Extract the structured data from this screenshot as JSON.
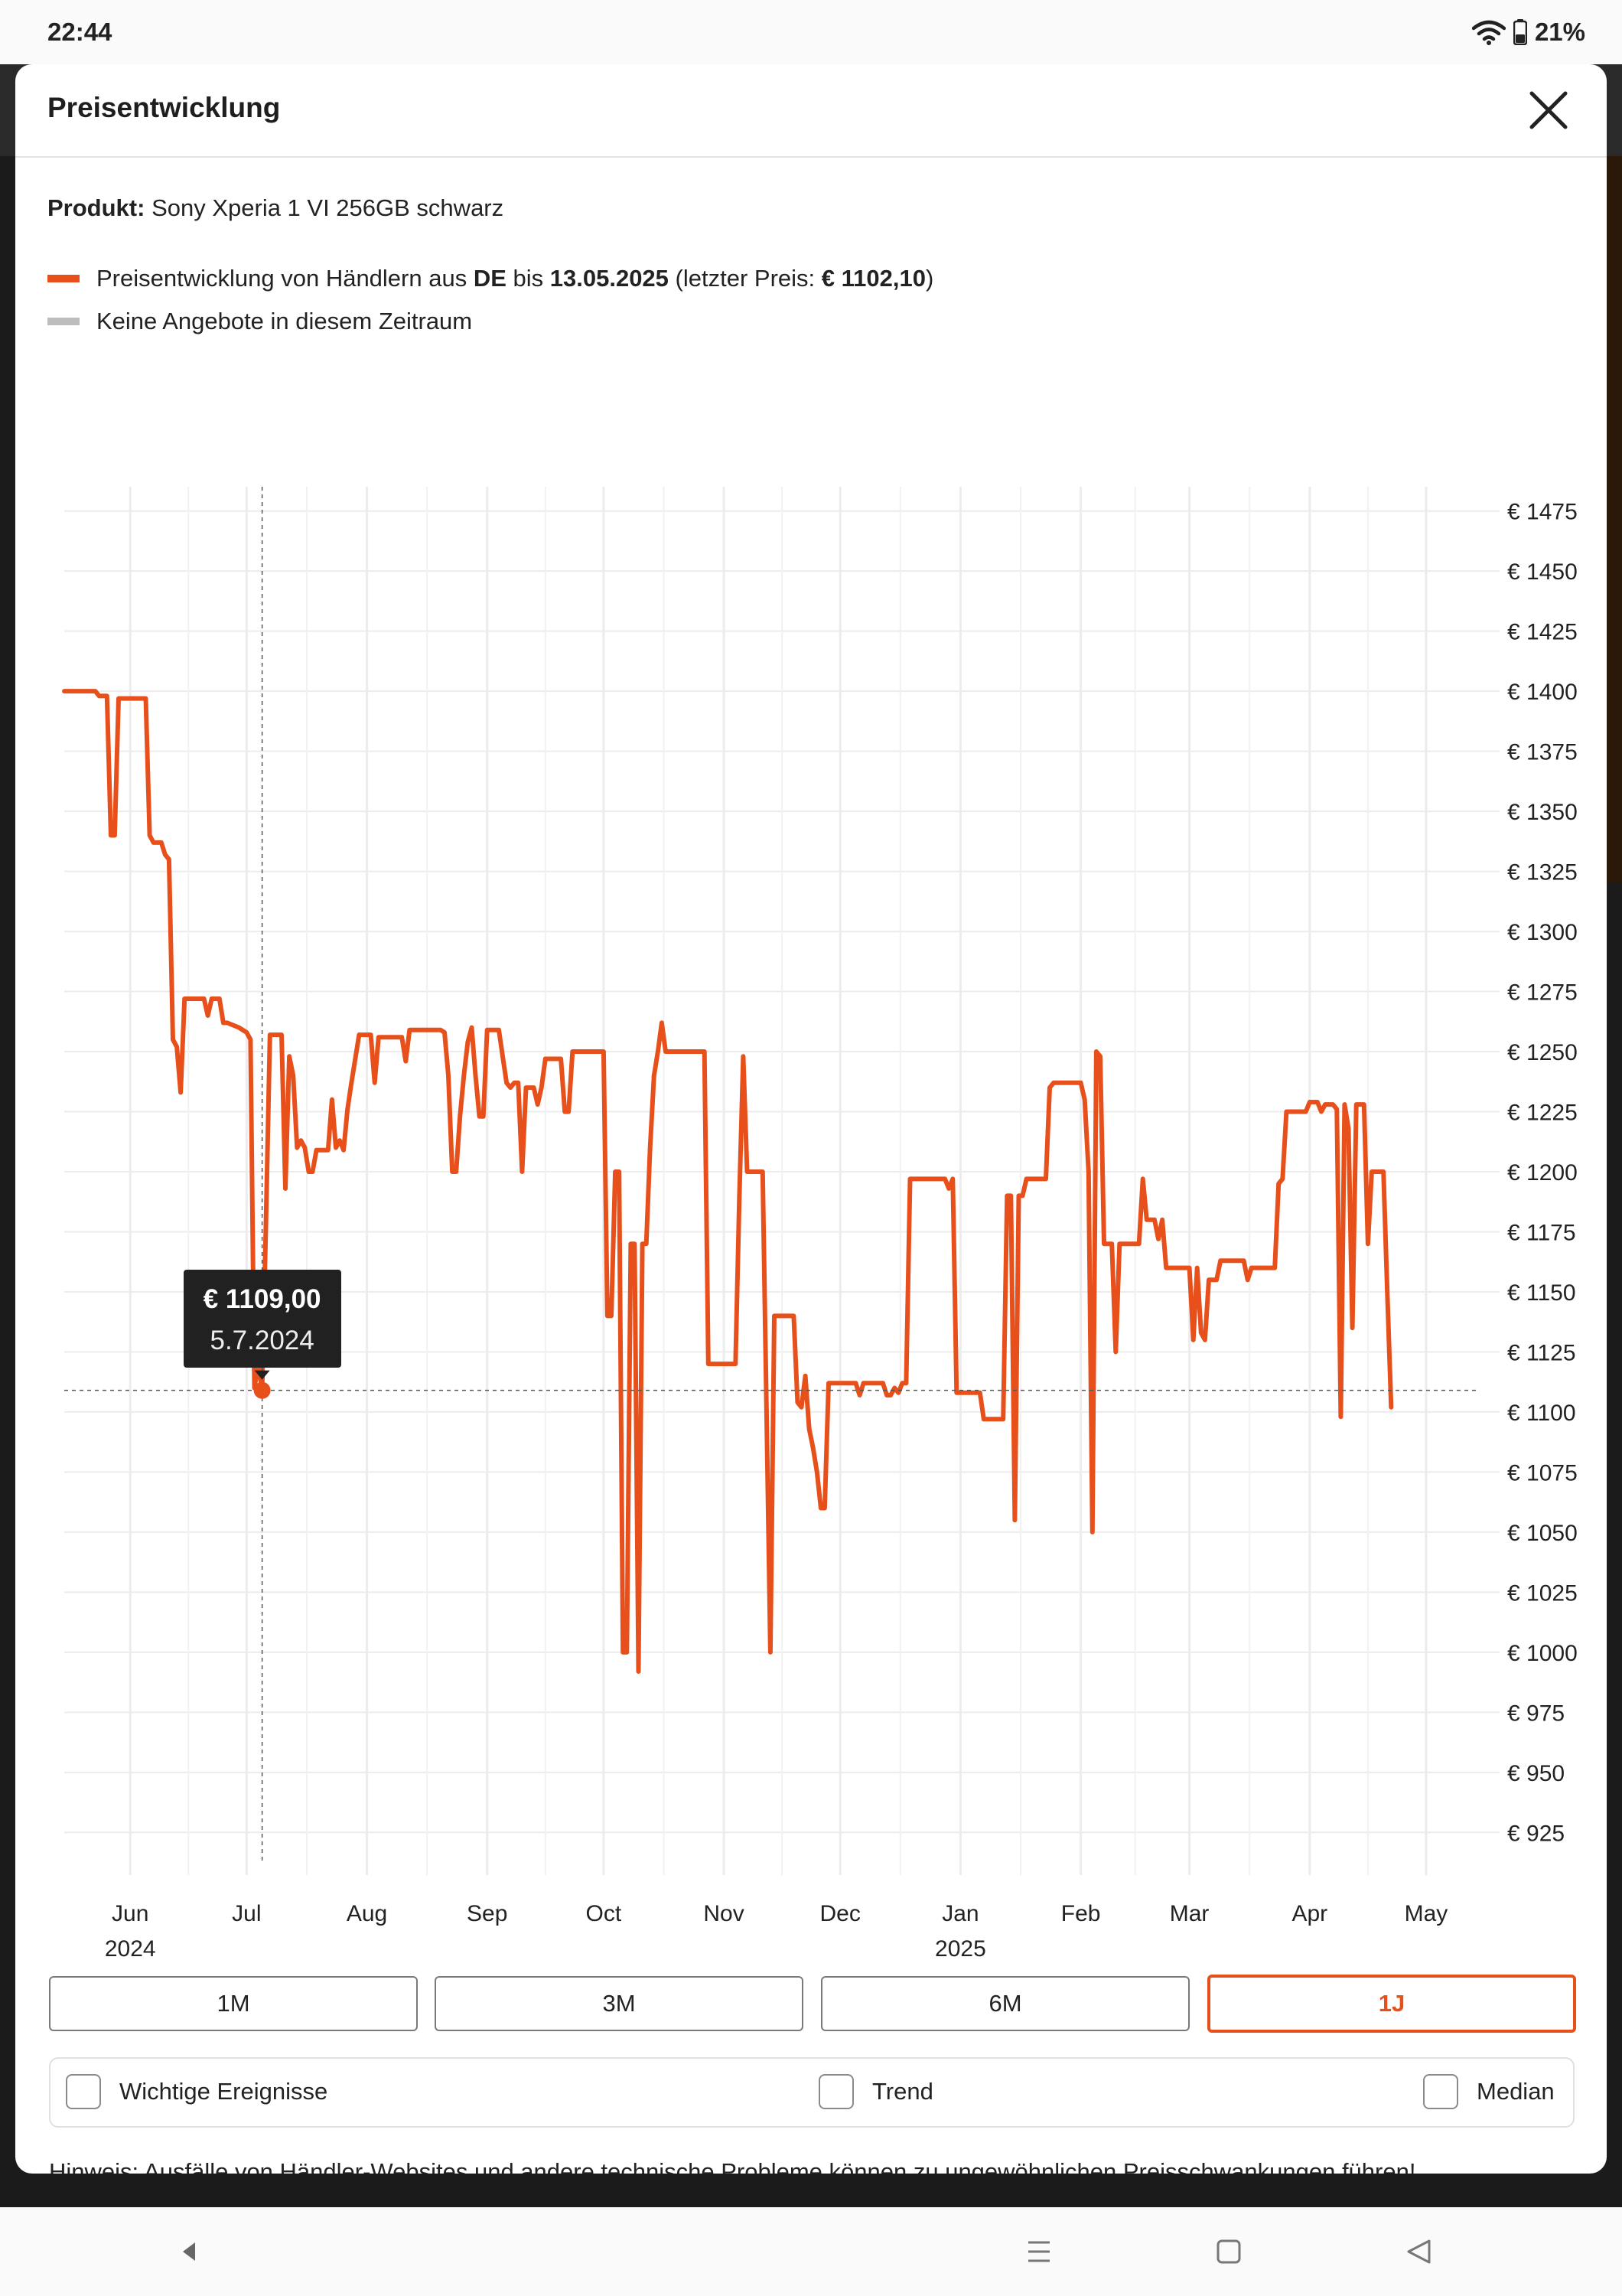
{
  "status_bar": {
    "time": "22:44",
    "battery": "21%",
    "icons": [
      "wifi-icon",
      "battery-icon"
    ]
  },
  "modal": {
    "title": "Preisentwicklung",
    "product_label": "Produkt:",
    "product_name": "Sony Xperia 1 VI 256GB schwarz",
    "legend": {
      "line1_prefix": "Preisentwicklung von Händlern aus ",
      "line1_country": "DE",
      "line1_until": " bis ",
      "line1_date": "13.05.2025",
      "line1_last_open": " (letzter Preis: ",
      "line1_last_price": "€ 1102,10",
      "line1_close": ")",
      "line2": "Keine Angebote in diesem Zeitraum",
      "line1_color": "#e8501b",
      "line2_color": "#bdbdbd"
    },
    "tooltip": {
      "price": "€ 1109,00",
      "date": "5.7.2024"
    },
    "range_buttons": [
      {
        "label": "1M",
        "active": false
      },
      {
        "label": "3M",
        "active": false
      },
      {
        "label": "6M",
        "active": false
      },
      {
        "label": "1J",
        "active": true
      }
    ],
    "options": {
      "events": "Wichtige Ereignisse",
      "trend": "Trend",
      "median": "Median"
    },
    "hint": "Hinweis: Ausfälle von Händler-Websites und andere technische Probleme können zu ungewöhnlichen Preisschwankungen führen!"
  },
  "colors": {
    "accent": "#e8501b",
    "grid": "#ececec",
    "tooltip_bg": "#212121"
  },
  "chart_data": {
    "type": "line",
    "x_axis_months": [
      {
        "label": "Jun",
        "year": "2024",
        "date": "2024-06-01"
      },
      {
        "label": "Jul",
        "year": "",
        "date": "2024-07-01"
      },
      {
        "label": "Aug",
        "year": "",
        "date": "2024-08-01"
      },
      {
        "label": "Sep",
        "year": "",
        "date": "2024-09-01"
      },
      {
        "label": "Oct",
        "year": "",
        "date": "2024-10-01"
      },
      {
        "label": "Nov",
        "year": "",
        "date": "2024-11-01"
      },
      {
        "label": "Dec",
        "year": "",
        "date": "2024-12-01"
      },
      {
        "label": "Jan",
        "year": "2025",
        "date": "2025-01-01"
      },
      {
        "label": "Feb",
        "year": "",
        "date": "2025-02-01"
      },
      {
        "label": "Mar",
        "year": "",
        "date": "2025-03-01"
      },
      {
        "label": "Apr",
        "year": "",
        "date": "2025-04-01"
      },
      {
        "label": "May",
        "year": "",
        "date": "2025-05-01"
      }
    ],
    "y_ticks": [
      "€ 1475",
      "€ 1450",
      "€ 1425",
      "€ 1400",
      "€ 1375",
      "€ 1350",
      "€ 1325",
      "€ 1300",
      "€ 1275",
      "€ 1250",
      "€ 1225",
      "€ 1200",
      "€ 1175",
      "€ 1150",
      "€ 1125",
      "€ 1100",
      "€ 1075",
      "€ 1050",
      "€ 1025",
      "€ 1000",
      "€ 975",
      "€ 950",
      "€ 925"
    ],
    "y_tick_values": [
      1475,
      1450,
      1425,
      1400,
      1375,
      1350,
      1325,
      1300,
      1275,
      1250,
      1225,
      1200,
      1175,
      1150,
      1125,
      1100,
      1075,
      1050,
      1025,
      1000,
      975,
      950,
      925
    ],
    "xlim": [
      "2024-05-15",
      "2025-05-16"
    ],
    "ylim": [
      920,
      1480
    ],
    "series": [
      {
        "color": "#e8501b",
        "points": [
          [
            "2024-05-15",
            1400
          ],
          [
            "2024-05-23",
            1400
          ],
          [
            "2024-05-24",
            1398
          ],
          [
            "2024-05-26",
            1398
          ],
          [
            "2024-05-27",
            1340
          ],
          [
            "2024-05-28",
            1340
          ],
          [
            "2024-05-29",
            1397
          ],
          [
            "2024-06-05",
            1397
          ],
          [
            "2024-06-06",
            1340
          ],
          [
            "2024-06-07",
            1337
          ],
          [
            "2024-06-09",
            1337
          ],
          [
            "2024-06-10",
            1332
          ],
          [
            "2024-06-11",
            1330
          ],
          [
            "2024-06-12",
            1255
          ],
          [
            "2024-06-13",
            1252
          ],
          [
            "2024-06-14",
            1233
          ],
          [
            "2024-06-15",
            1272
          ],
          [
            "2024-06-20",
            1272
          ],
          [
            "2024-06-21",
            1265
          ],
          [
            "2024-06-22",
            1272
          ],
          [
            "2024-06-24",
            1272
          ],
          [
            "2024-06-25",
            1262
          ],
          [
            "2024-06-26",
            1262
          ],
          [
            "2024-06-29",
            1260
          ],
          [
            "2024-07-01",
            1258
          ],
          [
            "2024-07-02",
            1255
          ],
          [
            "2024-07-03",
            1110
          ],
          [
            "2024-07-04",
            1120
          ],
          [
            "2024-07-05",
            1109
          ],
          [
            "2024-07-06",
            1180
          ],
          [
            "2024-07-07",
            1257
          ],
          [
            "2024-07-10",
            1257
          ],
          [
            "2024-07-11",
            1193
          ],
          [
            "2024-07-12",
            1248
          ],
          [
            "2024-07-13",
            1240
          ],
          [
            "2024-07-14",
            1210
          ],
          [
            "2024-07-15",
            1213
          ],
          [
            "2024-07-16",
            1210
          ],
          [
            "2024-07-17",
            1200
          ],
          [
            "2024-07-18",
            1200
          ],
          [
            "2024-07-19",
            1209
          ],
          [
            "2024-07-22",
            1209
          ],
          [
            "2024-07-23",
            1230
          ],
          [
            "2024-07-24",
            1210
          ],
          [
            "2024-07-25",
            1213
          ],
          [
            "2024-07-26",
            1209
          ],
          [
            "2024-07-27",
            1226
          ],
          [
            "2024-07-28",
            1237
          ],
          [
            "2024-07-30",
            1257
          ],
          [
            "2024-08-02",
            1257
          ],
          [
            "2024-08-03",
            1237
          ],
          [
            "2024-08-04",
            1256
          ],
          [
            "2024-08-10",
            1256
          ],
          [
            "2024-08-11",
            1246
          ],
          [
            "2024-08-12",
            1259
          ],
          [
            "2024-08-20",
            1259
          ],
          [
            "2024-08-21",
            1258
          ],
          [
            "2024-08-22",
            1240
          ],
          [
            "2024-08-23",
            1200
          ],
          [
            "2024-08-24",
            1200
          ],
          [
            "2024-08-25",
            1223
          ],
          [
            "2024-08-26",
            1240
          ],
          [
            "2024-08-27",
            1254
          ],
          [
            "2024-08-28",
            1260
          ],
          [
            "2024-08-29",
            1240
          ],
          [
            "2024-08-30",
            1223
          ],
          [
            "2024-08-31",
            1223
          ],
          [
            "2024-09-01",
            1259
          ],
          [
            "2024-09-04",
            1259
          ],
          [
            "2024-09-05",
            1248
          ],
          [
            "2024-09-06",
            1237
          ],
          [
            "2024-09-07",
            1235
          ],
          [
            "2024-09-08",
            1237
          ],
          [
            "2024-09-09",
            1237
          ],
          [
            "2024-09-10",
            1200
          ],
          [
            "2024-09-11",
            1235
          ],
          [
            "2024-09-13",
            1235
          ],
          [
            "2024-09-14",
            1228
          ],
          [
            "2024-09-15",
            1235
          ],
          [
            "2024-09-16",
            1247
          ],
          [
            "2024-09-20",
            1247
          ],
          [
            "2024-09-21",
            1225
          ],
          [
            "2024-09-22",
            1225
          ],
          [
            "2024-09-23",
            1250
          ],
          [
            "2024-10-01",
            1250
          ],
          [
            "2024-10-02",
            1140
          ],
          [
            "2024-10-03",
            1140
          ],
          [
            "2024-10-04",
            1200
          ],
          [
            "2024-10-05",
            1200
          ],
          [
            "2024-10-06",
            1000
          ],
          [
            "2024-10-07",
            1000
          ],
          [
            "2024-10-08",
            1170
          ],
          [
            "2024-10-09",
            1170
          ],
          [
            "2024-10-10",
            992
          ],
          [
            "2024-10-11",
            1170
          ],
          [
            "2024-10-12",
            1170
          ],
          [
            "2024-10-13",
            1210
          ],
          [
            "2024-10-14",
            1240
          ],
          [
            "2024-10-15",
            1250
          ],
          [
            "2024-10-16",
            1262
          ],
          [
            "2024-10-17",
            1250
          ],
          [
            "2024-10-27",
            1250
          ],
          [
            "2024-10-28",
            1120
          ],
          [
            "2024-11-04",
            1120
          ],
          [
            "2024-11-05",
            1190
          ],
          [
            "2024-11-06",
            1248
          ],
          [
            "2024-11-07",
            1200
          ],
          [
            "2024-11-08",
            1200
          ],
          [
            "2024-11-11",
            1200
          ],
          [
            "2024-11-12",
            1100
          ],
          [
            "2024-11-13",
            1000
          ],
          [
            "2024-11-14",
            1140
          ],
          [
            "2024-11-19",
            1140
          ],
          [
            "2024-11-20",
            1104
          ],
          [
            "2024-11-21",
            1102
          ],
          [
            "2024-11-22",
            1115
          ],
          [
            "2024-11-23",
            1093
          ],
          [
            "2024-11-24",
            1085
          ],
          [
            "2024-11-25",
            1075
          ],
          [
            "2024-11-26",
            1060
          ],
          [
            "2024-11-27",
            1060
          ],
          [
            "2024-11-28",
            1112
          ],
          [
            "2024-12-05",
            1112
          ],
          [
            "2024-12-06",
            1107
          ],
          [
            "2024-12-07",
            1112
          ],
          [
            "2024-12-12",
            1112
          ],
          [
            "2024-12-13",
            1107
          ],
          [
            "2024-12-14",
            1107
          ],
          [
            "2024-12-15",
            1110
          ],
          [
            "2024-12-16",
            1108
          ],
          [
            "2024-12-17",
            1112
          ],
          [
            "2024-12-18",
            1112
          ],
          [
            "2024-12-19",
            1197
          ],
          [
            "2024-12-28",
            1197
          ],
          [
            "2024-12-29",
            1193
          ],
          [
            "2024-12-30",
            1197
          ],
          [
            "2024-12-31",
            1108
          ],
          [
            "2025-01-06",
            1108
          ],
          [
            "2025-01-07",
            1097
          ],
          [
            "2025-01-12",
            1097
          ],
          [
            "2025-01-13",
            1190
          ],
          [
            "2025-01-14",
            1190
          ],
          [
            "2025-01-15",
            1055
          ],
          [
            "2025-01-16",
            1190
          ],
          [
            "2025-01-17",
            1190
          ],
          [
            "2025-01-18",
            1197
          ],
          [
            "2025-01-22",
            1197
          ],
          [
            "2025-01-23",
            1197
          ],
          [
            "2025-01-24",
            1235
          ],
          [
            "2025-01-25",
            1237
          ],
          [
            "2025-02-01",
            1237
          ],
          [
            "2025-02-02",
            1230
          ],
          [
            "2025-02-03",
            1200
          ],
          [
            "2025-02-04",
            1050
          ],
          [
            "2025-02-05",
            1250
          ],
          [
            "2025-02-06",
            1248
          ],
          [
            "2025-02-07",
            1170
          ],
          [
            "2025-02-09",
            1170
          ],
          [
            "2025-02-10",
            1125
          ],
          [
            "2025-02-11",
            1170
          ],
          [
            "2025-02-15",
            1170
          ],
          [
            "2025-02-16",
            1170
          ],
          [
            "2025-02-17",
            1197
          ],
          [
            "2025-02-18",
            1180
          ],
          [
            "2025-02-19",
            1180
          ],
          [
            "2025-02-20",
            1180
          ],
          [
            "2025-02-21",
            1172
          ],
          [
            "2025-02-22",
            1180
          ],
          [
            "2025-02-23",
            1160
          ],
          [
            "2025-02-24",
            1160
          ],
          [
            "2025-03-01",
            1160
          ],
          [
            "2025-03-02",
            1130
          ],
          [
            "2025-03-03",
            1160
          ],
          [
            "2025-03-04",
            1133
          ],
          [
            "2025-03-05",
            1130
          ],
          [
            "2025-03-06",
            1155
          ],
          [
            "2025-03-07",
            1155
          ],
          [
            "2025-03-08",
            1155
          ],
          [
            "2025-03-09",
            1163
          ],
          [
            "2025-03-15",
            1163
          ],
          [
            "2025-03-16",
            1155
          ],
          [
            "2025-03-17",
            1160
          ],
          [
            "2025-03-23",
            1160
          ],
          [
            "2025-03-24",
            1195
          ],
          [
            "2025-03-25",
            1197
          ],
          [
            "2025-03-26",
            1225
          ],
          [
            "2025-03-31",
            1225
          ],
          [
            "2025-04-01",
            1229
          ],
          [
            "2025-04-03",
            1229
          ],
          [
            "2025-04-04",
            1225
          ],
          [
            "2025-04-05",
            1228
          ],
          [
            "2025-04-07",
            1228
          ],
          [
            "2025-04-08",
            1226
          ],
          [
            "2025-04-09",
            1098
          ],
          [
            "2025-04-10",
            1228
          ],
          [
            "2025-04-11",
            1218
          ],
          [
            "2025-04-12",
            1135
          ],
          [
            "2025-04-13",
            1228
          ],
          [
            "2025-04-14",
            1228
          ],
          [
            "2025-04-15",
            1228
          ],
          [
            "2025-04-16",
            1170
          ],
          [
            "2025-04-17",
            1200
          ],
          [
            "2025-04-18",
            1200
          ],
          [
            "2025-04-19",
            1200
          ],
          [
            "2025-04-20",
            1200
          ],
          [
            "2025-04-21",
            1150
          ],
          [
            "2025-04-22",
            1102
          ]
        ]
      }
    ],
    "highlight": {
      "x": "2024-07-05",
      "y": 1109,
      "price": "€ 1109,00",
      "date": "5.7.2024"
    }
  }
}
